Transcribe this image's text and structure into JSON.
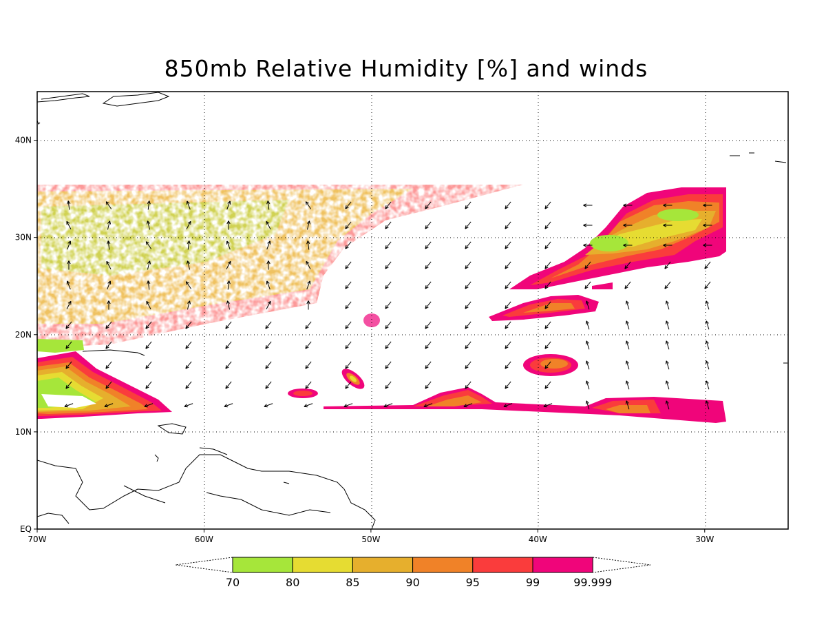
{
  "title": "850mb Relative Humidity [%] and winds",
  "map": {
    "x_axis": {
      "ticks": [
        "70W",
        "60W",
        "50W",
        "40W",
        "30W"
      ],
      "values": [
        -70,
        -60,
        -50,
        -40,
        -30
      ],
      "range": [
        -70,
        -25
      ]
    },
    "y_axis": {
      "ticks": [
        "EQ",
        "10N",
        "20N",
        "30N",
        "40N"
      ],
      "values": [
        0,
        10,
        20,
        30,
        40
      ],
      "range": [
        0,
        45
      ]
    },
    "grid": "dotted",
    "layers": [
      "coastlines",
      "relative-humidity-shading",
      "wind-vectors"
    ]
  },
  "colorbar": {
    "labels": [
      "70",
      "80",
      "85",
      "90",
      "95",
      "99",
      "99.999"
    ],
    "colors": [
      "#a6e63a",
      "#e6dc32",
      "#e6af2d",
      "#f08228",
      "#fa3c3c",
      "#f0057a"
    ],
    "extends": "both"
  },
  "colors": {
    "rh_70": "#a6e63a",
    "rh_80": "#e6dc32",
    "rh_85": "#e6af2d",
    "rh_90": "#f08228",
    "rh_95": "#fa3c3c",
    "rh_99": "#f0057a"
  }
}
